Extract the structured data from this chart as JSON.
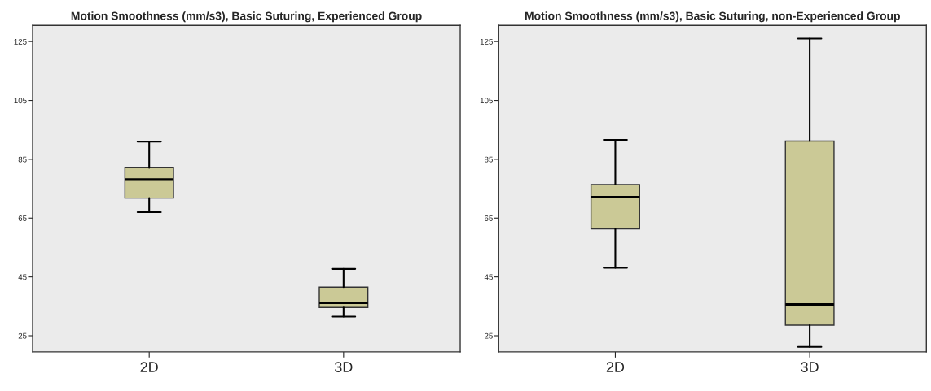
{
  "chart_data": [
    {
      "type": "box",
      "title": "Motion Smoothness (mm/s3), Basic Suturing, Experienced Group",
      "categories": [
        "2D",
        "3D"
      ],
      "color": "#cbc996",
      "ylim": [
        19.5,
        130.5
      ],
      "yticks": [
        25,
        45,
        65,
        85,
        105,
        125
      ],
      "grid": false,
      "boxes": [
        {
          "low": 67,
          "q1": 71.8,
          "median": 78.1,
          "q3": 82.1,
          "high": 91
        },
        {
          "low": 31.5,
          "q1": 34.6,
          "median": 36.2,
          "q3": 41.5,
          "high": 47.7
        }
      ]
    },
    {
      "type": "box",
      "title": "Motion Smoothness (mm/s3), Basic Suturing, non-Experienced Group",
      "categories": [
        "2D",
        "3D"
      ],
      "color": "#cbc996",
      "ylim": [
        19.5,
        130.5
      ],
      "yticks": [
        25,
        45,
        65,
        85,
        105,
        125
      ],
      "grid": false,
      "boxes": [
        {
          "low": 48.1,
          "q1": 61.3,
          "median": 72.1,
          "q3": 76.4,
          "high": 91.6
        },
        {
          "low": 21.2,
          "q1": 28.6,
          "median": 35.6,
          "q3": 91.2,
          "high": 126
        }
      ]
    }
  ]
}
